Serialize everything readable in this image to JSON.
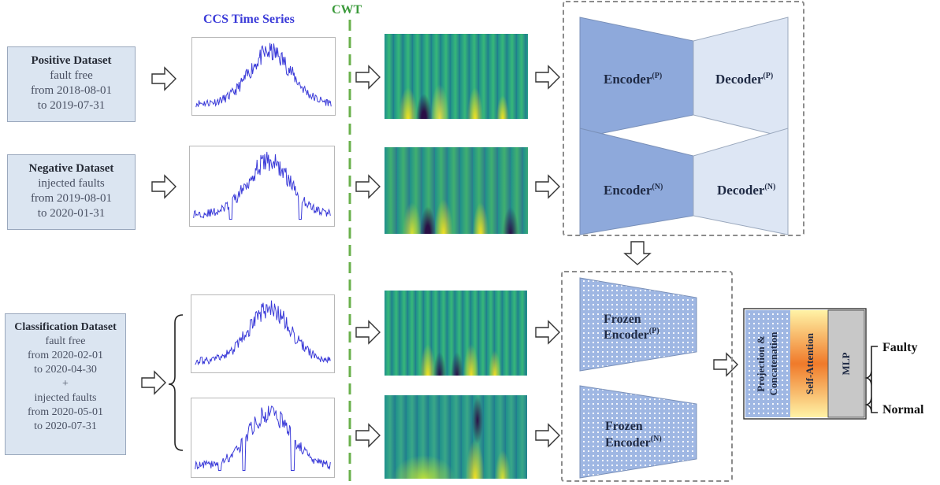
{
  "headers": {
    "time_series": "CCS Time Series",
    "cwt": "CWT"
  },
  "datasets": [
    {
      "title": "Positive Dataset",
      "lines": [
        "fault free",
        "from 2018-08-01",
        "to 2019-07-31"
      ]
    },
    {
      "title": "Negative Dataset",
      "lines": [
        "injected faults",
        "from 2019-08-01",
        "to 2020-01-31"
      ]
    },
    {
      "title": "Classification Dataset",
      "lines": [
        "fault free",
        "from 2020-02-01",
        "to 2020-04-30",
        "+",
        "injected faults",
        "from 2020-05-01",
        "to 2020-07-31"
      ]
    }
  ],
  "autoencoders": [
    {
      "encoder": "Encoder",
      "encoder_sup": "(P)",
      "decoder": "Decoder",
      "decoder_sup": "(P)"
    },
    {
      "encoder": "Encoder",
      "encoder_sup": "(N)",
      "decoder": "Decoder",
      "decoder_sup": "(N)"
    }
  ],
  "frozen": [
    {
      "line1": "Frozen",
      "line2": "Encoder",
      "sup": "(P)"
    },
    {
      "line1": "Frozen",
      "line2": "Encoder",
      "sup": "(N)"
    }
  ],
  "classifier": {
    "projection": "Projection &",
    "concatenation": "Concatenation",
    "attention": "Self-Attention",
    "mlp": "MLP"
  },
  "outputs": {
    "faulty": "Faulty",
    "normal": "Normal"
  },
  "colors": {
    "accent_blue": "#3a3ad8",
    "cwt_line": "#6ab04c",
    "box_fill": "#dbe5f1",
    "encoder_fill": "#8ea9db",
    "decoder_fill": "#dde6f4"
  }
}
